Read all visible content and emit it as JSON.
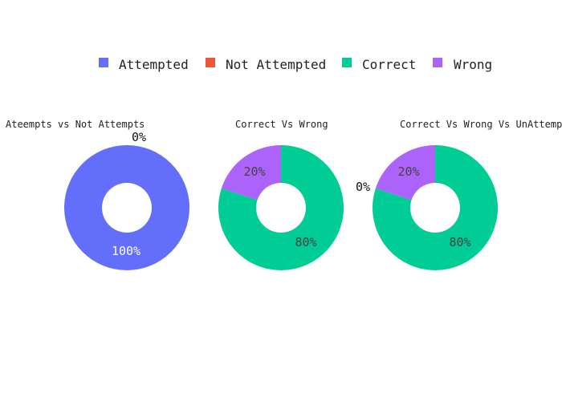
{
  "chart_data": [
    {
      "type": "pie",
      "hole": true,
      "title": "Ateempts vs Not Attempts",
      "slices": [
        {
          "label": "Attempted",
          "value": 100,
          "percent_text": "100%",
          "color": "#636efa"
        },
        {
          "label": "Not Attempted",
          "value": 0,
          "percent_text": "0%",
          "color": "#ef553b"
        }
      ]
    },
    {
      "type": "pie",
      "hole": true,
      "title": "Correct Vs Wrong",
      "slices": [
        {
          "label": "Correct",
          "value": 80,
          "percent_text": "80%",
          "color": "#00cc96"
        },
        {
          "label": "Wrong",
          "value": 20,
          "percent_text": "20%",
          "color": "#ab63fa"
        }
      ]
    },
    {
      "type": "pie",
      "hole": true,
      "title": "Correct Vs Wrong Vs UnAttemp",
      "slices": [
        {
          "label": "Correct",
          "value": 80,
          "percent_text": "80%",
          "color": "#00cc96"
        },
        {
          "label": "Wrong",
          "value": 20,
          "percent_text": "20%",
          "color": "#ab63fa"
        },
        {
          "label": "Not Attempted",
          "value": 0,
          "percent_text": "0%",
          "color": "#ef553b"
        }
      ]
    }
  ],
  "legend": {
    "placement": "top-center",
    "items": [
      {
        "label": "Attempted",
        "color": "#636efa"
      },
      {
        "label": "Not Attempted",
        "color": "#ef553b"
      },
      {
        "label": "Correct",
        "color": "#00cc96"
      },
      {
        "label": "Wrong",
        "color": "#ab63fa"
      }
    ]
  }
}
